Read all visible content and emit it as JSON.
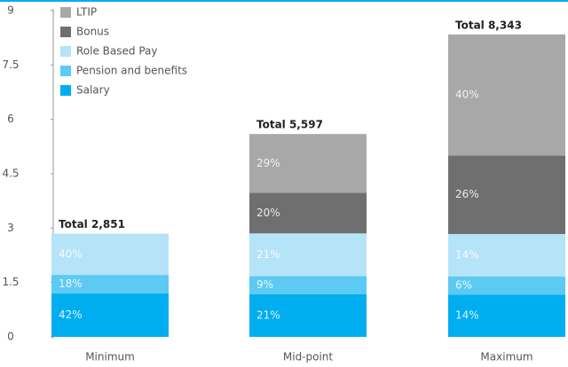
{
  "chart_data": {
    "type": "stacked-bar",
    "categories": [
      "Minimum",
      "Mid-point",
      "Maximum"
    ],
    "series": [
      {
        "name": "Salary",
        "color": "#00aeef",
        "values": [
          1.197,
          1.175,
          1.168
        ],
        "shares": [
          42,
          21,
          14
        ],
        "share_labels": [
          "42%",
          "21%",
          "14%"
        ]
      },
      {
        "name": "Pension and benefits",
        "color": "#5ccaf2",
        "values": [
          0.513,
          0.504,
          0.501
        ],
        "shares": [
          18,
          9,
          6
        ],
        "share_labels": [
          "18%",
          "9%",
          "6%"
        ]
      },
      {
        "name": "Role Based Pay",
        "color": "#b5e3f7",
        "values": [
          1.14,
          1.175,
          1.168
        ],
        "shares": [
          40,
          21,
          14
        ],
        "share_labels": [
          "40%",
          "21%",
          "14%"
        ]
      },
      {
        "name": "Bonus",
        "color": "#6f6f6f",
        "values": [
          null,
          1.119,
          2.169
        ],
        "shares": [
          null,
          20,
          26
        ],
        "share_labels": [
          null,
          "20%",
          "26%"
        ]
      },
      {
        "name": "LTIP",
        "color": "#a8a8a8",
        "values": [
          null,
          1.623,
          3.337
        ],
        "shares": [
          null,
          29,
          40
        ],
        "share_labels": [
          null,
          "29%",
          "40%"
        ]
      }
    ],
    "totals": [
      2.851,
      5.597,
      8.343
    ],
    "total_labels": [
      "Total 2,851",
      "Total 5,597",
      "Total 8,343"
    ],
    "ylim": [
      0,
      9
    ],
    "yticks": [
      0,
      1.5,
      3,
      4.5,
      6,
      7.5,
      9
    ],
    "legend": "top-left"
  }
}
